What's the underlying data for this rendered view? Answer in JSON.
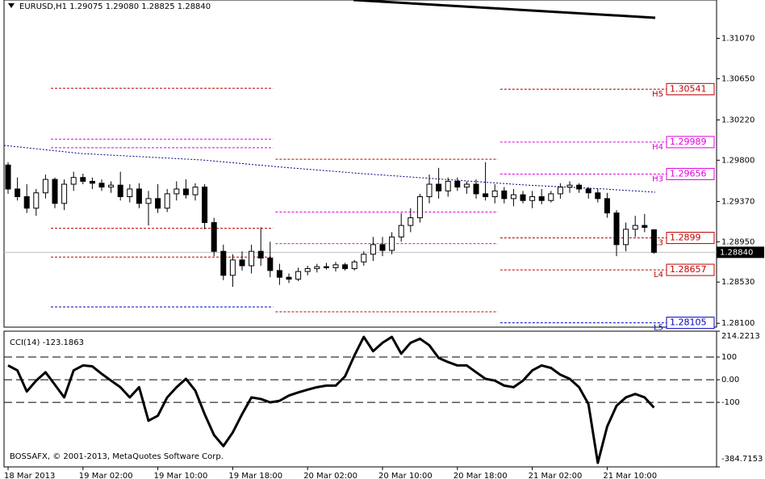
{
  "chart_data": [
    {
      "type": "candlestick",
      "title": "EURUSD,H1 1.29075 1.29080 1.28825 1.28840",
      "categories": [
        "18 Mar 2013",
        null,
        null,
        null,
        null,
        null,
        null,
        null,
        "19 Mar 02:00",
        null,
        null,
        null,
        null,
        null,
        null,
        null,
        "19 Mar 10:00",
        null,
        null,
        null,
        null,
        null,
        null,
        null,
        "19 Mar 18:00",
        null,
        null,
        null,
        null,
        null,
        null,
        null,
        "20 Mar 02:00",
        null,
        null,
        null,
        null,
        null,
        null,
        null,
        "20 Mar 10:00",
        null,
        null,
        null,
        null,
        null,
        null,
        null,
        "20 Mar 18:00",
        null,
        null,
        null,
        null,
        null,
        null,
        null,
        "21 Mar 02:00",
        null,
        null,
        null,
        null,
        null,
        null,
        null,
        "21 Mar 10:00",
        null,
        null,
        null,
        null,
        null
      ],
      "open": [
        1.2975,
        1.295,
        1.2942,
        1.293,
        1.2946,
        1.296,
        1.2935,
        1.2955,
        1.2962,
        1.2958,
        1.2956,
        1.2952,
        1.2954,
        1.2942,
        1.295,
        1.2935,
        1.294,
        1.293,
        1.2945,
        1.295,
        1.2944,
        1.2952,
        1.2915,
        1.2885,
        1.286,
        1.2876,
        1.287,
        1.2885,
        1.2878,
        1.2865,
        1.2858,
        1.2856,
        1.2864,
        1.2867,
        1.2869,
        1.2868,
        1.2871,
        1.2867,
        1.2874,
        1.2882,
        1.2892,
        1.2886,
        1.29,
        1.2912,
        1.292,
        1.2942,
        1.2955,
        1.2948,
        1.2958,
        1.2952,
        1.2955,
        1.2945,
        1.2942,
        1.2948,
        1.294,
        1.2944,
        1.2938,
        1.2942,
        1.2938,
        1.2945,
        1.2952,
        1.2954,
        1.295,
        1.2946,
        1.294,
        1.2925,
        1.2892,
        1.2908,
        1.2912,
        1.29075
      ],
      "high": [
        1.2978,
        1.2962,
        1.2955,
        1.295,
        1.2965,
        1.2962,
        1.296,
        1.2968,
        1.2966,
        1.2962,
        1.296,
        1.2958,
        1.2968,
        1.2955,
        1.2956,
        1.2948,
        1.2955,
        1.295,
        1.2958,
        1.296,
        1.2956,
        1.2955,
        1.292,
        1.2892,
        1.2882,
        1.2885,
        1.2892,
        1.291,
        1.2895,
        1.2872,
        1.2862,
        1.2868,
        1.287,
        1.2872,
        1.2873,
        1.2874,
        1.2873,
        1.2876,
        1.2885,
        1.29,
        1.29,
        1.2905,
        1.2925,
        1.293,
        1.2945,
        1.2965,
        1.2972,
        1.2962,
        1.2962,
        1.2958,
        1.296,
        1.2978,
        1.2955,
        1.2952,
        1.295,
        1.2948,
        1.2948,
        1.295,
        1.2948,
        1.2956,
        1.2958,
        1.2956,
        1.2952,
        1.295,
        1.2946,
        1.2928,
        1.2915,
        1.2922,
        1.2924,
        1.2908
      ],
      "low": [
        1.2945,
        1.2938,
        1.2925,
        1.2922,
        1.294,
        1.293,
        1.2928,
        1.2948,
        1.2955,
        1.295,
        1.2948,
        1.2946,
        1.2938,
        1.2936,
        1.293,
        1.2912,
        1.2925,
        1.2926,
        1.2938,
        1.294,
        1.2938,
        1.2908,
        1.288,
        1.2855,
        1.2848,
        1.2865,
        1.2862,
        1.287,
        1.2858,
        1.285,
        1.2852,
        1.2854,
        1.286,
        1.2863,
        1.2866,
        1.2864,
        1.2865,
        1.2865,
        1.287,
        1.2875,
        1.288,
        1.2882,
        1.2895,
        1.2905,
        1.2915,
        1.2935,
        1.294,
        1.2942,
        1.2948,
        1.2945,
        1.294,
        1.2938,
        1.2935,
        1.2935,
        1.2932,
        1.2935,
        1.293,
        1.2934,
        1.2936,
        1.294,
        1.2946,
        1.2946,
        1.294,
        1.2936,
        1.292,
        1.288,
        1.2885,
        1.29,
        1.2905,
        1.28825
      ],
      "close": [
        1.295,
        1.2942,
        1.293,
        1.2946,
        1.296,
        1.2935,
        1.2955,
        1.2962,
        1.2958,
        1.2956,
        1.2952,
        1.2954,
        1.2942,
        1.295,
        1.2935,
        1.294,
        1.293,
        1.2945,
        1.295,
        1.2944,
        1.2952,
        1.2915,
        1.2885,
        1.286,
        1.2876,
        1.287,
        1.2885,
        1.2878,
        1.2865,
        1.2858,
        1.2856,
        1.2864,
        1.2867,
        1.2869,
        1.2868,
        1.2871,
        1.2867,
        1.2874,
        1.2882,
        1.2892,
        1.2886,
        1.29,
        1.2912,
        1.292,
        1.2942,
        1.2955,
        1.2948,
        1.2958,
        1.2952,
        1.2955,
        1.2945,
        1.2942,
        1.2948,
        1.294,
        1.2944,
        1.2938,
        1.2942,
        1.2938,
        1.2945,
        1.2952,
        1.2954,
        1.295,
        1.2946,
        1.294,
        1.2925,
        1.2892,
        1.2908,
        1.2912,
        1.291,
        1.2884
      ],
      "ylim": [
        1.2806,
        1.3147
      ],
      "yticks": [
        {
          "value": 1.3107,
          "label": "1.31070"
        },
        {
          "value": 1.3065,
          "label": "1.30650"
        },
        {
          "value": 1.3022,
          "label": "1.30220"
        },
        {
          "value": 1.298,
          "label": "1.29800"
        },
        {
          "value": 1.2937,
          "label": "1.29370"
        },
        {
          "value": 1.2895,
          "label": "1.28950"
        },
        {
          "value": 1.2853,
          "label": "1.28530"
        },
        {
          "value": 1.281,
          "label": "1.28100"
        }
      ],
      "price_label": {
        "value": 1.2884,
        "label": "1.28840"
      },
      "levels": [
        {
          "name": "H5",
          "color": "#c00000",
          "values": [
            null,
            1.3055,
            1.2981,
            1.30541
          ]
        },
        {
          "name": "H4",
          "color": "#e000e0",
          "values": [
            null,
            1.3002,
            1.2926,
            1.29989
          ]
        },
        {
          "name": "H3",
          "color": "#e000e0",
          "values": [
            null,
            1.2993,
            1.2893,
            1.29656
          ]
        },
        {
          "name": "L3",
          "color": "#c00000",
          "values": [
            null,
            1.2909,
            null,
            1.2899
          ]
        },
        {
          "name": "L4",
          "color": "#c00000",
          "values": [
            null,
            1.2879,
            1.2822,
            1.28657
          ]
        },
        {
          "name": "L5",
          "color": "#0000c0",
          "values": [
            null,
            1.2827,
            null,
            1.28105
          ]
        }
      ]
    },
    {
      "type": "line",
      "title": "CCI(14) -123.1863",
      "note": "BOSSAFX, © 2001-2013, MetaQuotes Software Corp.",
      "values": [
        63,
        41,
        -52,
        -4,
        33,
        -22,
        -78,
        41,
        63,
        59,
        26,
        -4,
        -33,
        -78,
        -33,
        -181,
        -159,
        -78,
        -33,
        4,
        -48,
        -152,
        -244,
        -293,
        -233,
        -152,
        -78,
        -85,
        -100,
        -93,
        -70,
        -56,
        -44,
        -33,
        -26,
        -26,
        15,
        107,
        189,
        126,
        163,
        189,
        115,
        163,
        181,
        152,
        96,
        78,
        63,
        63,
        33,
        4,
        -4,
        -26,
        -33,
        -4,
        41,
        63,
        52,
        22,
        4,
        -33,
        -107,
        -367,
        -207,
        -115,
        -78,
        -63,
        -78,
        -123.1863
      ],
      "color": "#000000",
      "ylim": [
        -384.7153,
        214.2213
      ],
      "yticks": [
        214.2213,
        100,
        {
          "value": 0,
          "label": "0.00"
        },
        -100,
        -384.7153
      ],
      "levels": [
        100,
        0,
        -100
      ]
    }
  ]
}
